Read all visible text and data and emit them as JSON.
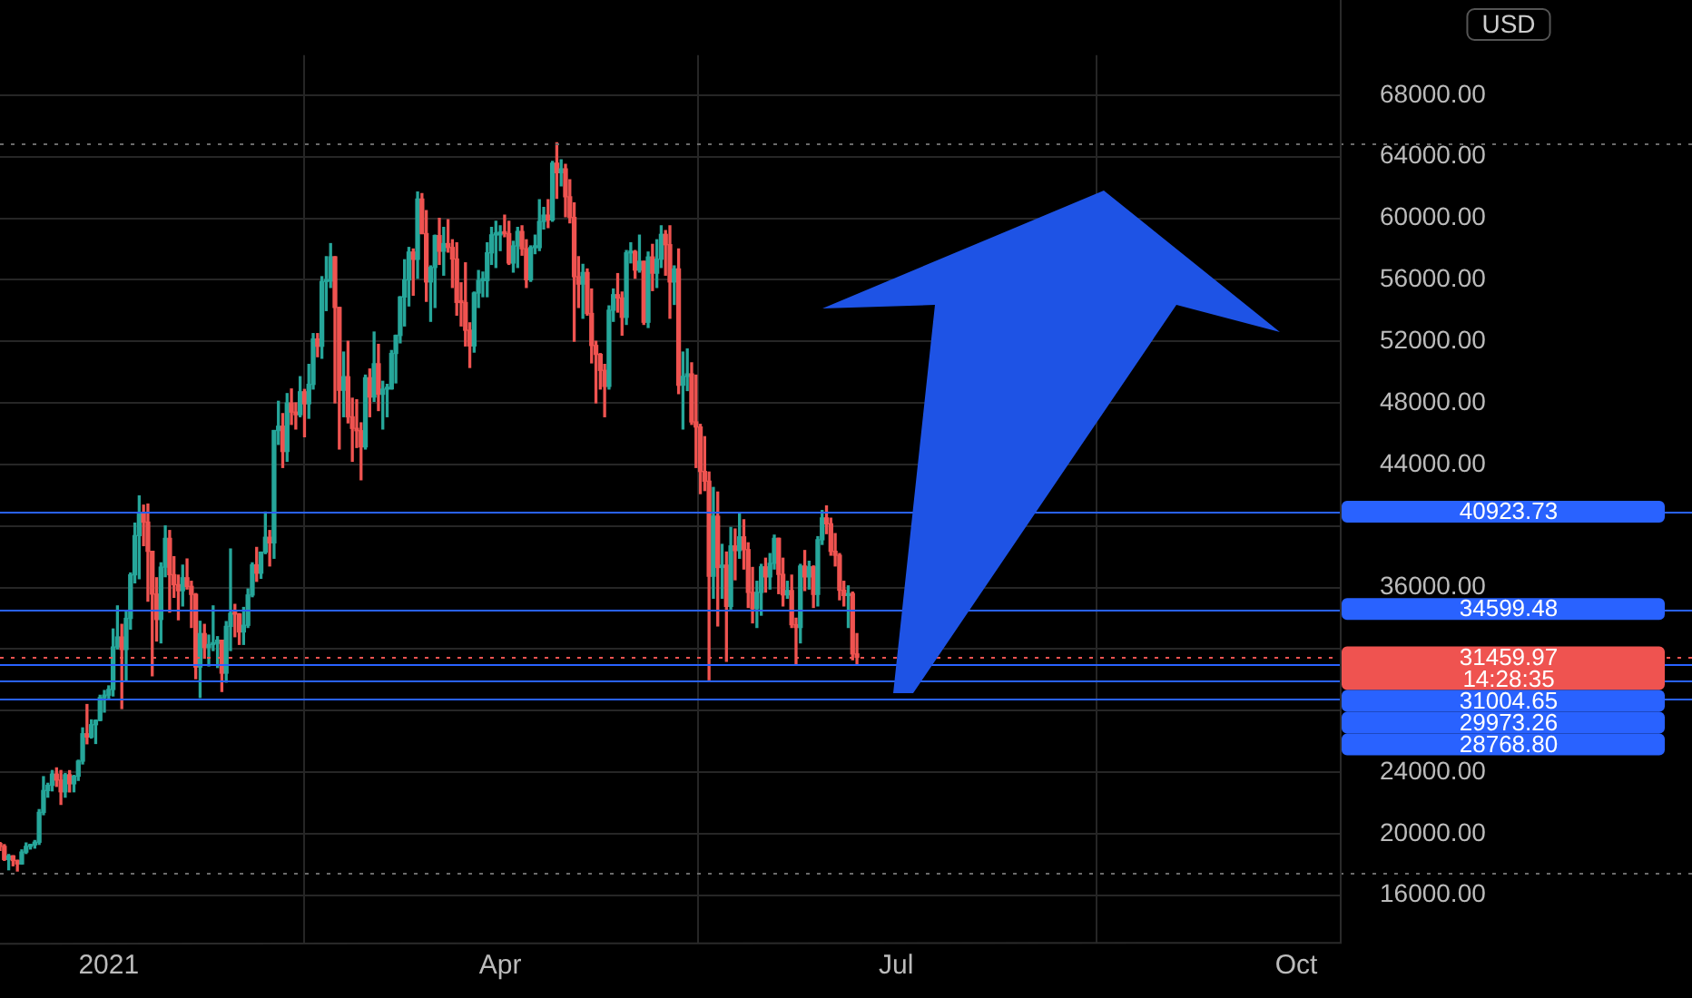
{
  "chart_data": {
    "type": "candlestick",
    "ylabel": "USD",
    "x": [
      "2020-12-07",
      "2020-12-08",
      "2020-12-09",
      "2020-12-10",
      "2020-12-11",
      "2020-12-12",
      "2020-12-13",
      "2020-12-14",
      "2020-12-15",
      "2020-12-16",
      "2020-12-17",
      "2020-12-18",
      "2020-12-19",
      "2020-12-20",
      "2020-12-21",
      "2020-12-22",
      "2020-12-23",
      "2020-12-24",
      "2020-12-25",
      "2020-12-26",
      "2020-12-27",
      "2020-12-28",
      "2020-12-29",
      "2020-12-30",
      "2020-12-31",
      "2021-01-01",
      "2021-01-02",
      "2021-01-03",
      "2021-01-04",
      "2021-01-05",
      "2021-01-06",
      "2021-01-07",
      "2021-01-08",
      "2021-01-09",
      "2021-01-10",
      "2021-01-11",
      "2021-01-12",
      "2021-01-13",
      "2021-01-14",
      "2021-01-15",
      "2021-01-16",
      "2021-01-17",
      "2021-01-18",
      "2021-01-19",
      "2021-01-20",
      "2021-01-21",
      "2021-01-22",
      "2021-01-23",
      "2021-01-24",
      "2021-01-25",
      "2021-01-26",
      "2021-01-27",
      "2021-01-28",
      "2021-01-29",
      "2021-01-30",
      "2021-01-31",
      "2021-02-01",
      "2021-02-02",
      "2021-02-03",
      "2021-02-04",
      "2021-02-05",
      "2021-02-06",
      "2021-02-07",
      "2021-02-08",
      "2021-02-09",
      "2021-02-10",
      "2021-02-11",
      "2021-02-12",
      "2021-02-13",
      "2021-02-14",
      "2021-02-15",
      "2021-02-16",
      "2021-02-17",
      "2021-02-18",
      "2021-02-19",
      "2021-02-20",
      "2021-02-21",
      "2021-02-22",
      "2021-02-23",
      "2021-02-24",
      "2021-02-25",
      "2021-02-26",
      "2021-02-27",
      "2021-02-28",
      "2021-03-01",
      "2021-03-02",
      "2021-03-03",
      "2021-03-04",
      "2021-03-05",
      "2021-03-06",
      "2021-03-07",
      "2021-03-08",
      "2021-03-09",
      "2021-03-10",
      "2021-03-11",
      "2021-03-12",
      "2021-03-13",
      "2021-03-14",
      "2021-03-15",
      "2021-03-16",
      "2021-03-17",
      "2021-03-18",
      "2021-03-19",
      "2021-03-20",
      "2021-03-21",
      "2021-03-22",
      "2021-03-23",
      "2021-03-24",
      "2021-03-25",
      "2021-03-26",
      "2021-03-27",
      "2021-03-28",
      "2021-03-29",
      "2021-03-30",
      "2021-03-31",
      "2021-04-01",
      "2021-04-02",
      "2021-04-03",
      "2021-04-04",
      "2021-04-05",
      "2021-04-06",
      "2021-04-07",
      "2021-04-08",
      "2021-04-09",
      "2021-04-10",
      "2021-04-11",
      "2021-04-12",
      "2021-04-13",
      "2021-04-14",
      "2021-04-15",
      "2021-04-16",
      "2021-04-17",
      "2021-04-18",
      "2021-04-19",
      "2021-04-20",
      "2021-04-21",
      "2021-04-22",
      "2021-04-23",
      "2021-04-24",
      "2021-04-25",
      "2021-04-26",
      "2021-04-27",
      "2021-04-28",
      "2021-04-29",
      "2021-04-30",
      "2021-05-01",
      "2021-05-02",
      "2021-05-03",
      "2021-05-04",
      "2021-05-05",
      "2021-05-06",
      "2021-05-07",
      "2021-05-08",
      "2021-05-09",
      "2021-05-10",
      "2021-05-11",
      "2021-05-12",
      "2021-05-13",
      "2021-05-14",
      "2021-05-15",
      "2021-05-16",
      "2021-05-17",
      "2021-05-18",
      "2021-05-19",
      "2021-05-20",
      "2021-05-21",
      "2021-05-22",
      "2021-05-23",
      "2021-05-24",
      "2021-05-25",
      "2021-05-26",
      "2021-05-27",
      "2021-05-28",
      "2021-05-29",
      "2021-05-30",
      "2021-05-31",
      "2021-06-01",
      "2021-06-02",
      "2021-06-03",
      "2021-06-04",
      "2021-06-05",
      "2021-06-06",
      "2021-06-07",
      "2021-06-08",
      "2021-06-09",
      "2021-06-10",
      "2021-06-11",
      "2021-06-12",
      "2021-06-13",
      "2021-06-14",
      "2021-06-15",
      "2021-06-16",
      "2021-06-17",
      "2021-06-18",
      "2021-06-19",
      "2021-06-20",
      "2021-06-21",
      "2021-06-22"
    ],
    "ohlc": [
      [
        19360,
        19420,
        18900,
        19170
      ],
      [
        19170,
        19280,
        18260,
        18320
      ],
      [
        18320,
        18640,
        17650,
        18550
      ],
      [
        18550,
        18560,
        17910,
        18250
      ],
      [
        18250,
        18270,
        17570,
        18030
      ],
      [
        18030,
        18940,
        18020,
        18800
      ],
      [
        18800,
        19390,
        18710,
        19170
      ],
      [
        19170,
        19300,
        19000,
        19270
      ],
      [
        19270,
        19550,
        19060,
        19440
      ],
      [
        19440,
        21560,
        19300,
        21380
      ],
      [
        21380,
        23700,
        21230,
        22800
      ],
      [
        22800,
        23270,
        22370,
        23140
      ],
      [
        23140,
        24100,
        22780,
        23870
      ],
      [
        23870,
        24270,
        23070,
        23480
      ],
      [
        23480,
        24100,
        21900,
        22720
      ],
      [
        22720,
        23900,
        22370,
        23820
      ],
      [
        23820,
        24090,
        22710,
        23240
      ],
      [
        23240,
        23780,
        22720,
        23730
      ],
      [
        23730,
        24770,
        23460,
        24710
      ],
      [
        24710,
        26870,
        24530,
        26490
      ],
      [
        26490,
        28390,
        25840,
        26280
      ],
      [
        26280,
        27390,
        26210,
        27080
      ],
      [
        27080,
        27380,
        25860,
        27360
      ],
      [
        27360,
        28990,
        27340,
        28840
      ],
      [
        28840,
        29300,
        27900,
        29000
      ],
      [
        29000,
        29600,
        28800,
        29370
      ],
      [
        29370,
        33300,
        28950,
        32130
      ],
      [
        32130,
        34800,
        32000,
        32780
      ],
      [
        32780,
        33600,
        28130,
        31970
      ],
      [
        31970,
        34440,
        29900,
        33990
      ],
      [
        33990,
        36940,
        33290,
        36820
      ],
      [
        36820,
        40180,
        36300,
        39370
      ],
      [
        39370,
        41950,
        36570,
        40800
      ],
      [
        40800,
        41350,
        38720,
        40250
      ],
      [
        40250,
        41420,
        35110,
        38350
      ],
      [
        38350,
        38350,
        30260,
        35570
      ],
      [
        35570,
        36630,
        32520,
        33920
      ],
      [
        33920,
        37600,
        32400,
        37320
      ],
      [
        37320,
        40000,
        36700,
        39190
      ],
      [
        39190,
        39700,
        34400,
        36830
      ],
      [
        36830,
        38000,
        35360,
        36180
      ],
      [
        36180,
        36800,
        33900,
        35790
      ],
      [
        35790,
        37450,
        34800,
        36630
      ],
      [
        36630,
        37850,
        35900,
        36070
      ],
      [
        36070,
        36400,
        33400,
        35550
      ],
      [
        35550,
        35600,
        30070,
        30830
      ],
      [
        30830,
        33800,
        28850,
        33000
      ],
      [
        33000,
        33600,
        31400,
        32100
      ],
      [
        32100,
        32900,
        30900,
        32290
      ],
      [
        32290,
        34800,
        31900,
        32370
      ],
      [
        32370,
        32800,
        30800,
        32570
      ],
      [
        32570,
        32570,
        29240,
        30430
      ],
      [
        30430,
        33780,
        29850,
        33470
      ],
      [
        33470,
        38500,
        31900,
        34320
      ],
      [
        34320,
        34900,
        32800,
        34270
      ],
      [
        34270,
        34300,
        32300,
        33110
      ],
      [
        33110,
        34700,
        32300,
        33540
      ],
      [
        33540,
        35900,
        33400,
        35510
      ],
      [
        35510,
        37600,
        35400,
        37470
      ],
      [
        37470,
        38600,
        36400,
        36930
      ],
      [
        36930,
        38300,
        36600,
        38290
      ],
      [
        38290,
        40900,
        38200,
        39260
      ],
      [
        39260,
        39700,
        37400,
        38900
      ],
      [
        38900,
        46200,
        37900,
        46200
      ],
      [
        46200,
        48100,
        45300,
        46480
      ],
      [
        46480,
        47300,
        43800,
        44840
      ],
      [
        44840,
        48600,
        44200,
        47990
      ],
      [
        47990,
        48900,
        46600,
        47400
      ],
      [
        47400,
        48000,
        46300,
        47230
      ],
      [
        47230,
        49700,
        47100,
        48720
      ],
      [
        48720,
        48870,
        45800,
        47940
      ],
      [
        47940,
        50500,
        47000,
        49200
      ],
      [
        49200,
        52500,
        48900,
        52150
      ],
      [
        52150,
        52500,
        51000,
        51680
      ],
      [
        51680,
        56200,
        50900,
        55890
      ],
      [
        55890,
        57500,
        54000,
        55920
      ],
      [
        55920,
        58350,
        55500,
        57490
      ],
      [
        57490,
        57500,
        48000,
        54200
      ],
      [
        54200,
        54200,
        45000,
        48820
      ],
      [
        48820,
        51300,
        47100,
        49700
      ],
      [
        49700,
        52000,
        46700,
        47090
      ],
      [
        47090,
        48300,
        44200,
        46340
      ],
      [
        46340,
        48200,
        45100,
        46190
      ],
      [
        46190,
        46700,
        43000,
        45140
      ],
      [
        45140,
        49800,
        45000,
        49630
      ],
      [
        49630,
        50200,
        47100,
        48380
      ],
      [
        48380,
        52600,
        48100,
        50540
      ],
      [
        50540,
        51800,
        47500,
        48560
      ],
      [
        48560,
        49400,
        46300,
        48890
      ],
      [
        48890,
        49200,
        47100,
        48910
      ],
      [
        48910,
        51400,
        48900,
        51210
      ],
      [
        51210,
        52400,
        49300,
        52380
      ],
      [
        52380,
        54900,
        51900,
        54880
      ],
      [
        54880,
        57300,
        53000,
        55990
      ],
      [
        55990,
        58100,
        54300,
        57800
      ],
      [
        57800,
        58000,
        55000,
        57330
      ],
      [
        57330,
        61700,
        56100,
        61240
      ],
      [
        61240,
        61600,
        59000,
        59000
      ],
      [
        59000,
        60500,
        54600,
        55860
      ],
      [
        55860,
        56900,
        53300,
        56800
      ],
      [
        56800,
        58900,
        54200,
        58870
      ],
      [
        58870,
        60000,
        57000,
        57860
      ],
      [
        57860,
        59400,
        56300,
        58350
      ],
      [
        58350,
        59900,
        57800,
        58100
      ],
      [
        58100,
        58600,
        55500,
        57350
      ],
      [
        57350,
        58400,
        53700,
        54530
      ],
      [
        54530,
        55800,
        53000,
        54520
      ],
      [
        54520,
        57100,
        51700,
        52720
      ],
      [
        52720,
        53200,
        50300,
        51700
      ],
      [
        51700,
        55200,
        51300,
        55140
      ],
      [
        55140,
        56600,
        54200,
        55950
      ],
      [
        55950,
        56500,
        54900,
        55950
      ],
      [
        55950,
        58400,
        54900,
        57750
      ],
      [
        57750,
        59400,
        57000,
        58920
      ],
      [
        58920,
        59800,
        56800,
        58920
      ],
      [
        58920,
        59500,
        57900,
        59100
      ],
      [
        59100,
        60200,
        58800,
        59000
      ],
      [
        59000,
        59800,
        57000,
        57090
      ],
      [
        57090,
        58500,
        56500,
        58200
      ],
      [
        58200,
        59400,
        56800,
        59140
      ],
      [
        59140,
        59500,
        57600,
        58020
      ],
      [
        58020,
        58600,
        55500,
        56000
      ],
      [
        56000,
        58200,
        55900,
        58090
      ],
      [
        58090,
        58900,
        57700,
        58090
      ],
      [
        58090,
        61200,
        57900,
        59790
      ],
      [
        59790,
        60700,
        59300,
        60200
      ],
      [
        60200,
        61200,
        59400,
        59890
      ],
      [
        59890,
        63700,
        59800,
        63580
      ],
      [
        63580,
        64900,
        61300,
        62960
      ],
      [
        62960,
        63800,
        62100,
        63200
      ],
      [
        63200,
        63500,
        60100,
        61400
      ],
      [
        61400,
        62500,
        59700,
        60050
      ],
      [
        60050,
        61000,
        52000,
        56200
      ],
      [
        56200,
        57500,
        54200,
        55720
      ],
      [
        55720,
        57000,
        53500,
        56470
      ],
      [
        56470,
        56700,
        53700,
        53810
      ],
      [
        53810,
        55400,
        50600,
        51730
      ],
      [
        51730,
        52000,
        48000,
        51150
      ],
      [
        51150,
        51200,
        48900,
        50110
      ],
      [
        50110,
        50500,
        47100,
        49070
      ],
      [
        49070,
        54300,
        48900,
        54020
      ],
      [
        54020,
        55400,
        53300,
        55030
      ],
      [
        55030,
        56400,
        53900,
        54820
      ],
      [
        54820,
        55200,
        52400,
        53560
      ],
      [
        53560,
        57900,
        53100,
        57750
      ],
      [
        57750,
        58400,
        57100,
        57830
      ],
      [
        57830,
        57900,
        56100,
        56630
      ],
      [
        56630,
        58900,
        56500,
        57200
      ],
      [
        57200,
        57200,
        53100,
        53240
      ],
      [
        53240,
        57800,
        52900,
        57480
      ],
      [
        57480,
        58300,
        55300,
        56430
      ],
      [
        56430,
        58600,
        55500,
        57340
      ],
      [
        57340,
        59500,
        56800,
        58950
      ],
      [
        58950,
        59200,
        56300,
        58280
      ],
      [
        58280,
        59500,
        53500,
        55860
      ],
      [
        55860,
        56900,
        54400,
        56700
      ],
      [
        56700,
        58000,
        48600,
        49150
      ],
      [
        49150,
        51300,
        46300,
        49720
      ],
      [
        49720,
        51500,
        48800,
        49880
      ],
      [
        49880,
        50600,
        46600,
        46760
      ],
      [
        46760,
        49800,
        43800,
        46430
      ],
      [
        46430,
        46600,
        42100,
        43540
      ],
      [
        43540,
        45800,
        42300,
        42910
      ],
      [
        42910,
        43500,
        30000,
        36730
      ],
      [
        36730,
        42500,
        35300,
        40630
      ],
      [
        40630,
        42200,
        33500,
        37300
      ],
      [
        37300,
        38800,
        35300,
        37450
      ],
      [
        37450,
        38300,
        31200,
        34770
      ],
      [
        34770,
        39900,
        34600,
        38700
      ],
      [
        38700,
        39800,
        36500,
        38400
      ],
      [
        38400,
        40800,
        37900,
        39290
      ],
      [
        39290,
        40400,
        37200,
        38460
      ],
      [
        38460,
        38900,
        34700,
        35680
      ],
      [
        35680,
        37300,
        33700,
        34630
      ],
      [
        34630,
        36400,
        33400,
        35680
      ],
      [
        35680,
        37500,
        34200,
        37340
      ],
      [
        37340,
        37900,
        35700,
        36690
      ],
      [
        36690,
        38200,
        35900,
        37570
      ],
      [
        37570,
        39400,
        37200,
        39190
      ],
      [
        39190,
        39200,
        35600,
        36850
      ],
      [
        36850,
        37900,
        34800,
        35520
      ],
      [
        35520,
        36400,
        35300,
        35800
      ],
      [
        35800,
        36800,
        33400,
        33580
      ],
      [
        33580,
        34000,
        31000,
        33400
      ],
      [
        33400,
        37500,
        32400,
        37390
      ],
      [
        37390,
        38400,
        35800,
        36690
      ],
      [
        36690,
        37700,
        35900,
        37340
      ],
      [
        37340,
        37400,
        34700,
        35550
      ],
      [
        35550,
        39300,
        34800,
        39100
      ],
      [
        39100,
        41000,
        38800,
        40520
      ],
      [
        40520,
        41300,
        39500,
        40140
      ],
      [
        40140,
        40500,
        38100,
        38350
      ],
      [
        38350,
        39500,
        37400,
        38090
      ],
      [
        38090,
        38200,
        35200,
        35820
      ],
      [
        35820,
        36400,
        34800,
        35480
      ],
      [
        35480,
        36100,
        33400,
        35600
      ],
      [
        35600,
        35700,
        31300,
        31680
      ],
      [
        31680,
        33000,
        31000,
        31460
      ]
    ],
    "colors": [
      "#ef5350",
      "#ef5350",
      "#26a69a",
      "#ef5350",
      "#ef5350",
      "#26a69a",
      "#26a69a",
      "#26a69a",
      "#26a69a",
      "#26a69a",
      "#26a69a",
      "#26a69a",
      "#26a69a",
      "#ef5350",
      "#ef5350",
      "#26a69a",
      "#ef5350",
      "#26a69a",
      "#26a69a",
      "#26a69a",
      "#ef5350",
      "#26a69a",
      "#26a69a",
      "#26a69a",
      "#26a69a",
      "#26a69a",
      "#26a69a",
      "#26a69a",
      "#ef5350",
      "#26a69a",
      "#26a69a",
      "#26a69a",
      "#26a69a",
      "#ef5350",
      "#ef5350",
      "#ef5350",
      "#ef5350",
      "#26a69a",
      "#26a69a",
      "#ef5350",
      "#ef5350",
      "#ef5350",
      "#26a69a",
      "#ef5350",
      "#ef5350",
      "#ef5350",
      "#26a69a",
      "#ef5350",
      "#26a69a",
      "#26a69a",
      "#26a69a",
      "#ef5350",
      "#26a69a",
      "#26a69a",
      "#ef5350",
      "#ef5350",
      "#26a69a",
      "#26a69a",
      "#26a69a",
      "#ef5350",
      "#26a69a",
      "#26a69a",
      "#ef5350",
      "#26a69a",
      "#26a69a",
      "#ef5350",
      "#26a69a",
      "#ef5350",
      "#ef5350",
      "#26a69a",
      "#ef5350",
      "#26a69a",
      "#26a69a",
      "#ef5350",
      "#26a69a",
      "#26a69a",
      "#26a69a",
      "#ef5350",
      "#ef5350",
      "#26a69a",
      "#ef5350",
      "#ef5350",
      "#ef5350",
      "#ef5350",
      "#26a69a",
      "#ef5350",
      "#26a69a",
      "#ef5350",
      "#26a69a",
      "#26a69a",
      "#26a69a",
      "#26a69a",
      "#26a69a",
      "#26a69a",
      "#26a69a",
      "#ef5350",
      "#26a69a",
      "#ef5350",
      "#ef5350",
      "#26a69a",
      "#26a69a",
      "#ef5350",
      "#26a69a",
      "#ef5350",
      "#ef5350",
      "#ef5350",
      "#ef5350",
      "#ef5350",
      "#ef5350",
      "#26a69a",
      "#26a69a",
      "#26a69a",
      "#26a69a",
      "#26a69a",
      "#26a69a",
      "#26a69a",
      "#ef5350",
      "#ef5350",
      "#26a69a",
      "#26a69a",
      "#ef5350",
      "#ef5350",
      "#26a69a",
      "#26a69a",
      "#26a69a",
      "#26a69a",
      "#ef5350",
      "#26a69a",
      "#ef5350",
      "#26a69a",
      "#ef5350",
      "#ef5350",
      "#ef5350",
      "#ef5350",
      "#26a69a",
      "#ef5350",
      "#ef5350",
      "#ef5350",
      "#ef5350",
      "#ef5350",
      "#26a69a",
      "#26a69a",
      "#ef5350",
      "#ef5350",
      "#26a69a",
      "#26a69a",
      "#ef5350",
      "#26a69a",
      "#ef5350",
      "#26a69a",
      "#ef5350",
      "#26a69a",
      "#26a69a",
      "#ef5350",
      "#ef5350",
      "#26a69a",
      "#ef5350",
      "#26a69a",
      "#26a69a",
      "#ef5350",
      "#ef5350",
      "#ef5350",
      "#ef5350",
      "#ef5350",
      "#26a69a",
      "#ef5350",
      "#26a69a",
      "#ef5350",
      "#26a69a",
      "#ef5350",
      "#26a69a",
      "#ef5350",
      "#ef5350",
      "#ef5350",
      "#26a69a",
      "#26a69a",
      "#ef5350",
      "#26a69a",
      "#26a69a",
      "#ef5350",
      "#ef5350",
      "#26a69a",
      "#ef5350",
      "#ef5350",
      "#26a69a",
      "#ef5350",
      "#26a69a",
      "#ef5350",
      "#26a69a",
      "#26a69a",
      "#ef5350",
      "#ef5350",
      "#ef5350",
      "#ef5350",
      "#ef5350",
      "#26a69a",
      "#ef5350",
      "#ef5350"
    ],
    "xlim": [
      "2020-12-07",
      "2021-10-11"
    ],
    "xticks": [
      {
        "value": "2021-01-01",
        "label": "2021"
      },
      {
        "value": "2021-04-01",
        "label": "Apr"
      },
      {
        "value": "2021-07-01",
        "label": "Jul"
      },
      {
        "value": "2021-10-01",
        "label": "Oct"
      }
    ],
    "ylim": [
      12900,
      70600
    ],
    "yticks": [
      {
        "value": 16000,
        "label": "16000.00"
      },
      {
        "value": 20000,
        "label": "20000.00"
      },
      {
        "value": 24000,
        "label": "24000.00"
      },
      {
        "value": 28000,
        "label": null
      },
      {
        "value": 32000,
        "label": null
      },
      {
        "value": 36000,
        "label": "36000.00"
      },
      {
        "value": 40000,
        "label": null
      },
      {
        "value": 44000,
        "label": "44000.00"
      },
      {
        "value": 48000,
        "label": "48000.00"
      },
      {
        "value": 52000,
        "label": "52000.00"
      },
      {
        "value": 56000,
        "label": "56000.00"
      },
      {
        "value": 60000,
        "label": "60000.00"
      },
      {
        "value": 64000,
        "label": "64000.00"
      },
      {
        "value": 68000,
        "label": "68000.00"
      }
    ],
    "grid": true,
    "ref_lines": [
      {
        "axis": "y",
        "value": 40923.73,
        "label": "40923.73",
        "color": "#2962ff"
      },
      {
        "axis": "y",
        "value": 34599.48,
        "label": "34599.48",
        "color": "#2962ff"
      },
      {
        "axis": "y",
        "value": 31459.97,
        "label": "31459.97",
        "color": "#ef5350",
        "line_style": "dotted"
      },
      {
        "axis": "y",
        "value": 31004.65,
        "label": "31004.65",
        "color": "#2962ff"
      },
      {
        "axis": "y",
        "value": 29973.26,
        "label": "29973.26",
        "color": "#2962ff"
      },
      {
        "axis": "y",
        "value": 28768.8,
        "label": "28768.80",
        "color": "#2962ff"
      },
      {
        "axis": "y",
        "value": 64900,
        "label": null,
        "color": "#6b6b6b",
        "line_style": "dotted"
      },
      {
        "axis": "y",
        "value": 17500,
        "label": null,
        "color": "#6b6b6b",
        "line_style": "dotted"
      }
    ],
    "annotations": [
      "14:28:35"
    ]
  }
}
